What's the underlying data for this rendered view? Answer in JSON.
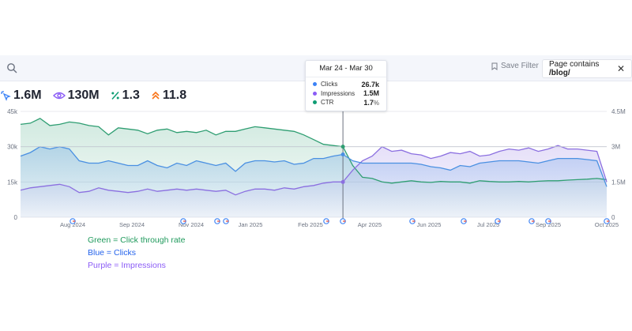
{
  "toolbar": {
    "search_icon": "search-icon",
    "save_filter_label": "Save Filter",
    "filter_chip_prefix": "Page contains ",
    "filter_chip_value": "/blog/",
    "close_glyph": "✕"
  },
  "metrics": [
    {
      "icon": "cursor-click-icon",
      "value": "1.6M",
      "color": "#3b82f6"
    },
    {
      "icon": "eye-icon",
      "value": "130M",
      "color": "#8b5cf6"
    },
    {
      "icon": "percent-icon",
      "value": "1.3",
      "color": "#0f9d74"
    },
    {
      "icon": "rank-chevron-icon",
      "value": "11.8",
      "color": "#f97316"
    }
  ],
  "tooltip": {
    "title": "Mar 24 - Mar 30",
    "rows": [
      {
        "name": "Clicks",
        "value": "26.7k",
        "unit": "",
        "color": "#3b82f6"
      },
      {
        "name": "Impressions",
        "value": "1.5M",
        "unit": "",
        "color": "#8b5cf6"
      },
      {
        "name": "CTR",
        "value": "1.7",
        "unit": "%",
        "color": "#0f9d74"
      }
    ]
  },
  "legend_notes": [
    {
      "text": "Green = Click through rate",
      "color": "#1f9a5c"
    },
    {
      "text": "Blue = Clicks",
      "color": "#2563eb"
    },
    {
      "text": "Purple =  Impressions",
      "color": "#8b5cf6"
    }
  ],
  "colors": {
    "clicks": "#4a90e2",
    "impressions": "#8b6fe0",
    "ctr": "#2f9e72",
    "grid": "#e8eaef"
  },
  "chart_data": {
    "type": "area",
    "x_ticks": [
      "Aug 2024",
      "Sep 2024",
      "Nov 2024",
      "Jan 2025",
      "Feb 2025",
      "Apr 2025",
      "Jun 2025",
      "Jul 2025",
      "Sep 2025",
      "Oct 2025"
    ],
    "left_axis_ticks": [
      "45k",
      "30k",
      "15k",
      "0"
    ],
    "right_axis_ticks": [
      "4.5M",
      "3M",
      "1.5M",
      "0"
    ],
    "ylim_left": [
      0,
      45000
    ],
    "ylim_right": [
      0,
      4500000
    ],
    "hover_week": "Mar 24 - Mar 30",
    "google_update_markers": 12,
    "series": [
      {
        "name": "Clicks",
        "axis": "left",
        "values": [
          26000,
          27500,
          30000,
          29000,
          30000,
          29000,
          24000,
          23000,
          23000,
          24000,
          23000,
          22000,
          22000,
          24000,
          22000,
          21000,
          23000,
          22000,
          24000,
          23000,
          22000,
          23000,
          19500,
          23000,
          24000,
          24000,
          23500,
          24000,
          22500,
          23000,
          25000,
          25000,
          26000,
          26700,
          24000,
          23000,
          23000,
          23000,
          23000,
          23000,
          23000,
          22500,
          21500,
          21000,
          20000,
          22000,
          21500,
          23000,
          23500,
          24000,
          24000,
          24000,
          23500,
          23000,
          24000,
          25000,
          25000,
          25000,
          24500,
          24000,
          13000
        ]
      },
      {
        "name": "Impressions",
        "axis": "right",
        "values": [
          1150000,
          1250000,
          1300000,
          1350000,
          1400000,
          1300000,
          1050000,
          1100000,
          1250000,
          1150000,
          1100000,
          1050000,
          1100000,
          1200000,
          1100000,
          1150000,
          1200000,
          1150000,
          1200000,
          1150000,
          1100000,
          1150000,
          950000,
          1100000,
          1200000,
          1200000,
          1150000,
          1250000,
          1200000,
          1300000,
          1350000,
          1450000,
          1500000,
          1500000,
          2000000,
          2400000,
          2600000,
          3000000,
          2800000,
          2850000,
          2700000,
          2650000,
          2500000,
          2600000,
          2750000,
          2700000,
          2800000,
          2600000,
          2650000,
          2800000,
          2900000,
          2850000,
          2950000,
          2800000,
          2900000,
          3050000,
          2900000,
          2900000,
          2850000,
          2800000,
          1500000
        ]
      },
      {
        "name": "CTR",
        "axis": "left_scaled",
        "values": [
          39500,
          40000,
          42000,
          39000,
          39500,
          40500,
          40000,
          39000,
          38500,
          35000,
          38000,
          37500,
          37000,
          35500,
          37000,
          37500,
          36000,
          36500,
          36000,
          37000,
          35000,
          36500,
          36500,
          37500,
          38500,
          38000,
          37500,
          37000,
          36500,
          35000,
          33000,
          31000,
          30500,
          30000,
          22000,
          17000,
          16500,
          15000,
          14500,
          15000,
          15500,
          15000,
          14800,
          15200,
          15000,
          15000,
          14500,
          15500,
          15200,
          15000,
          15000,
          15200,
          15000,
          15300,
          15500,
          15500,
          15800,
          16000,
          16200,
          16500,
          16000
        ]
      }
    ]
  }
}
